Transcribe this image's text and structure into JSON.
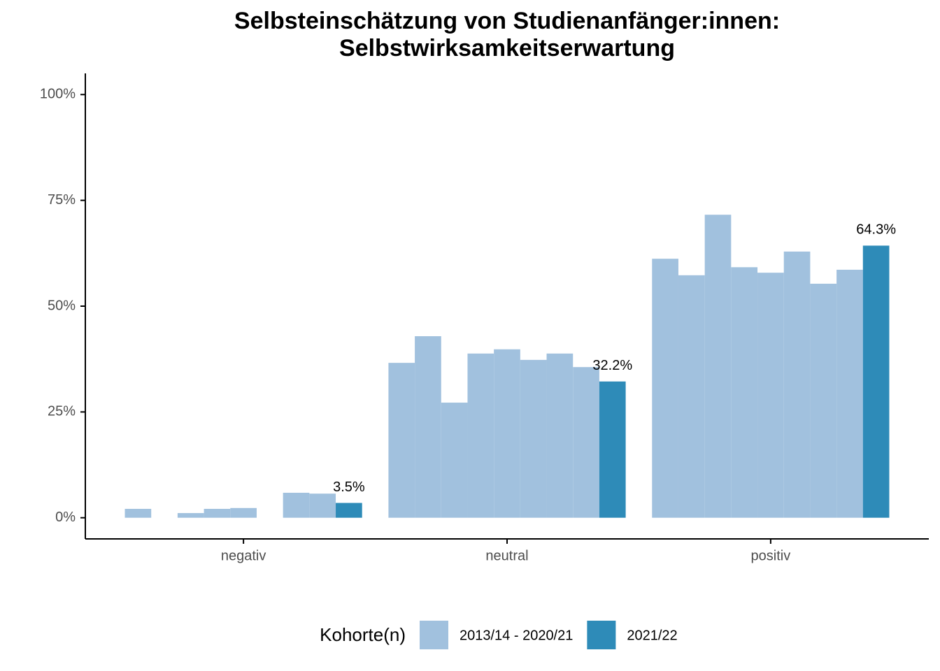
{
  "chart_data": {
    "type": "bar",
    "title": [
      "Selbsteinschätzung von Studienanfänger:innen:",
      "Selbstwirksamkeitserwartung"
    ],
    "categories": [
      "negativ",
      "neutral",
      "positiv"
    ],
    "legend_title": "Kohorte(n)",
    "series": [
      {
        "name": "2013/14 - 2020/21",
        "color": "#a1c1de",
        "values": [
          [
            2.1,
            0,
            1.1,
            2.1,
            2.3,
            0,
            5.9,
            5.7
          ],
          [
            36.6,
            42.9,
            27.2,
            38.8,
            39.8,
            37.3,
            38.8,
            35.6
          ],
          [
            61.2,
            57.3,
            71.6,
            59.2,
            57.9,
            62.9,
            55.3,
            58.6
          ]
        ]
      },
      {
        "name": "2021/22",
        "color": "#2e8bb8",
        "values": [
          3.5,
          32.2,
          64.3
        ],
        "value_labels": [
          "3.5%",
          "32.2%",
          "64.3%"
        ]
      }
    ],
    "ylim": [
      -5,
      105
    ],
    "yticks": [
      {
        "value": 0,
        "label": "0%"
      },
      {
        "value": 25,
        "label": "25%"
      },
      {
        "value": 50,
        "label": "50%"
      },
      {
        "value": 75,
        "label": "75%"
      },
      {
        "value": 100,
        "label": "100%"
      }
    ],
    "legend_position": "bottom"
  }
}
